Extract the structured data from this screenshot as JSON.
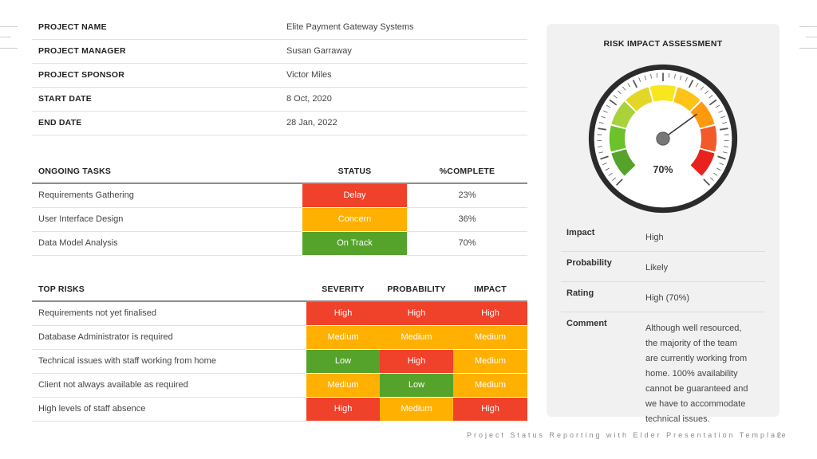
{
  "project_info": [
    {
      "label": "PROJECT NAME",
      "value": "Elite Payment Gateway Systems"
    },
    {
      "label": "PROJECT MANAGER",
      "value": "Susan Garraway"
    },
    {
      "label": "PROJECT SPONSOR",
      "value": "Victor Miles"
    },
    {
      "label": "START DATE",
      "value": "8 Oct, 2020"
    },
    {
      "label": "END DATE",
      "value": "28 Jan, 2022"
    }
  ],
  "tasks": {
    "headers": {
      "task": "ONGOING TASKS",
      "status": "STATUS",
      "complete": "%COMPLETE"
    },
    "rows": [
      {
        "name": "Requirements Gathering",
        "status": "Delay",
        "status_color": "red",
        "complete": "23%"
      },
      {
        "name": "User Interface Design",
        "status": "Concern",
        "status_color": "orange",
        "complete": "36%"
      },
      {
        "name": "Data Model Analysis",
        "status": "On Track",
        "status_color": "green",
        "complete": "70%"
      }
    ]
  },
  "risks": {
    "headers": {
      "risk": "TOP RISKS",
      "severity": "SEVERITY",
      "probability": "PROBABILITY",
      "impact": "IMPACT"
    },
    "rows": [
      {
        "name": "Requirements not yet finalised",
        "severity": "High",
        "severity_color": "red",
        "probability": "High",
        "probability_color": "red",
        "impact": "High",
        "impact_color": "red"
      },
      {
        "name": "Database Administrator is required",
        "severity": "Medium",
        "severity_color": "orange",
        "probability": "Medium",
        "probability_color": "orange",
        "impact": "Medium",
        "impact_color": "orange"
      },
      {
        "name": "Technical issues with staff working from home",
        "severity": "Low",
        "severity_color": "green",
        "probability": "High",
        "probability_color": "red",
        "impact": "Medium",
        "impact_color": "orange"
      },
      {
        "name": "Client not always available as required",
        "severity": "Medium",
        "severity_color": "orange",
        "probability": "Low",
        "probability_color": "green",
        "impact": "Medium",
        "impact_color": "orange"
      },
      {
        "name": "High levels of staff absence",
        "severity": "High",
        "severity_color": "red",
        "probability": "Medium",
        "probability_color": "orange",
        "impact": "High",
        "impact_color": "red"
      }
    ]
  },
  "assessment": {
    "title": "RISK IMPACT ASSESSMENT",
    "gauge_value_label": "70%",
    "gauge_fraction": 0.7,
    "items": [
      {
        "label": "Impact",
        "value": "High"
      },
      {
        "label": "Probability",
        "value": "Likely"
      },
      {
        "label": "Rating",
        "value": "High (70%)"
      },
      {
        "label": "Comment",
        "value_lines": [
          "Although well resourced,",
          "the majority of the team",
          "are currently working from",
          "home.  100% availability",
          "cannot be guaranteed and",
          "we have to accommodate",
          "technical issues."
        ]
      }
    ]
  },
  "colors": {
    "red": "#f0412b",
    "orange": "#ffb000",
    "green": "#55a32b",
    "gauge_rim": "#2b2b2b"
  },
  "footer": {
    "text": "Project Status Reporting with Elder Presentation Template",
    "page": "2"
  }
}
